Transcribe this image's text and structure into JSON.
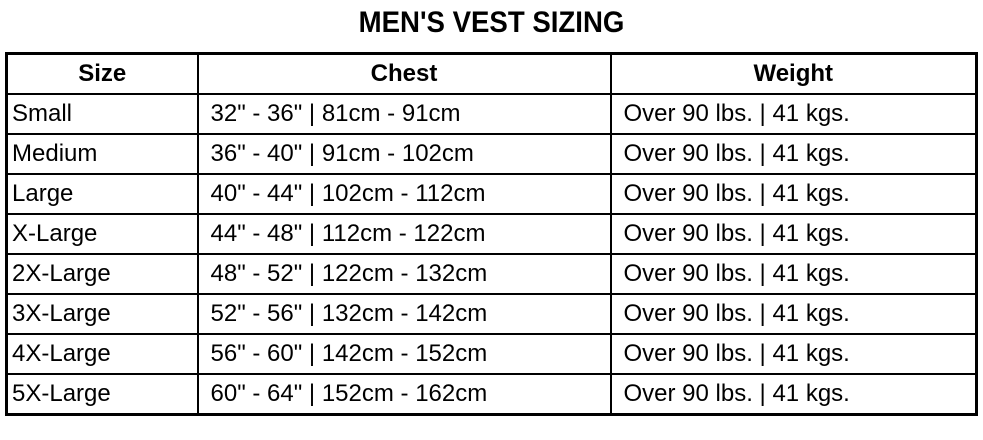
{
  "title": "MEN'S VEST SIZING",
  "headers": [
    "Size",
    "Chest",
    "Weight"
  ],
  "rows": [
    [
      "Small",
      "32\" - 36\" | 81cm - 91cm",
      "Over 90 lbs. | 41 kgs."
    ],
    [
      "Medium",
      "36\" - 40\" | 91cm - 102cm",
      "Over 90 lbs. | 41 kgs."
    ],
    [
      "Large",
      "40\" - 44\" | 102cm - 112cm",
      "Over 90 lbs. | 41 kgs."
    ],
    [
      "X-Large",
      "44\" - 48\" | 112cm - 122cm",
      "Over 90 lbs. | 41 kgs."
    ],
    [
      "2X-Large",
      "48\" - 52\" | 122cm - 132cm",
      "Over 90 lbs. | 41 kgs."
    ],
    [
      "3X-Large",
      "52\" - 56\" | 132cm - 142cm",
      "Over 90 lbs. | 41 kgs."
    ],
    [
      "4X-Large",
      "56\" - 60\" | 142cm - 152cm",
      "Over 90 lbs. | 41 kgs."
    ],
    [
      "5X-Large",
      "60\" - 64\" | 152cm - 162cm",
      "Over 90 lbs. | 41 kgs."
    ]
  ]
}
